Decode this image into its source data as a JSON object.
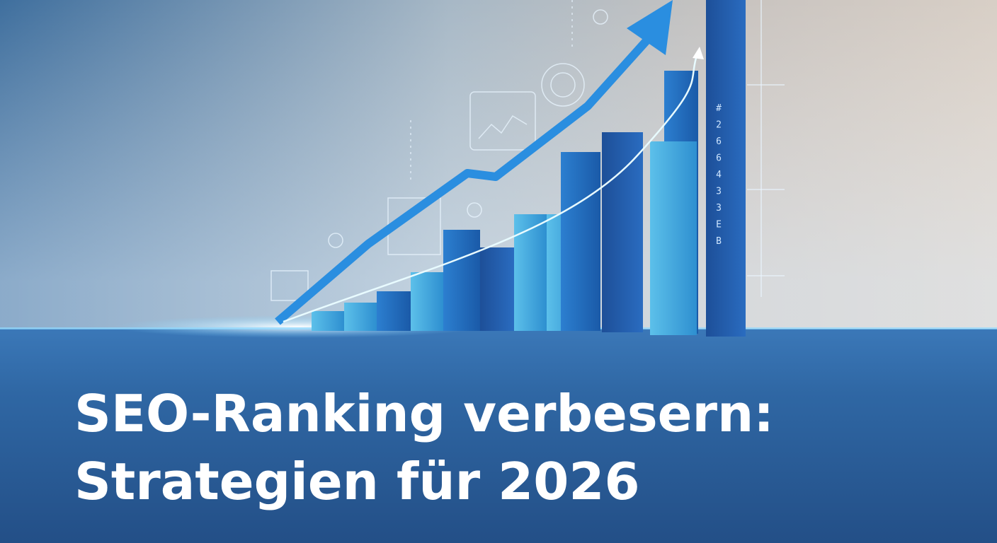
{
  "title": {
    "lines": [
      "SEO-Ranking verbesern:",
      "Strategien für 2026"
    ]
  },
  "sidebar_glyphs": [
    "#",
    "2",
    "6",
    "6",
    "4",
    "3",
    "3",
    "E",
    "B"
  ]
}
